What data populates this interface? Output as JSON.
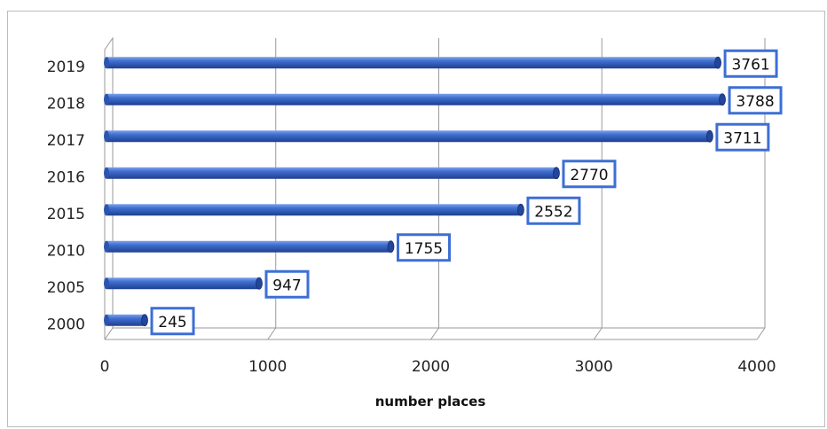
{
  "chart_data": {
    "type": "bar",
    "orientation": "horizontal",
    "categories": [
      "2019",
      "2018",
      "2017",
      "2016",
      "2015",
      "2010",
      "2005",
      "2000"
    ],
    "values": [
      3761,
      3788,
      3711,
      2770,
      2552,
      1755,
      947,
      245
    ],
    "series": [
      {
        "values": [
          3761,
          3788,
          3711,
          2770,
          2552,
          1755,
          947,
          245
        ]
      }
    ],
    "data_labels": [
      "3761",
      "3788",
      "3711",
      "2770",
      "2552",
      "1755",
      "947",
      "245"
    ],
    "title": "",
    "xlabel": "number places",
    "ylabel": "",
    "xlim": [
      0,
      4000
    ],
    "xticks": [
      0,
      1000,
      2000,
      3000,
      4000
    ],
    "xtick_labels": [
      "0",
      "1000",
      "2000",
      "3000",
      "4000"
    ],
    "grid": true,
    "legend": "none",
    "colors": {
      "bar": "#3f6fd1",
      "bar_dark": "#1f3f8f",
      "label_border": "#3c6fd6",
      "grid": "#9a9a9a"
    }
  }
}
